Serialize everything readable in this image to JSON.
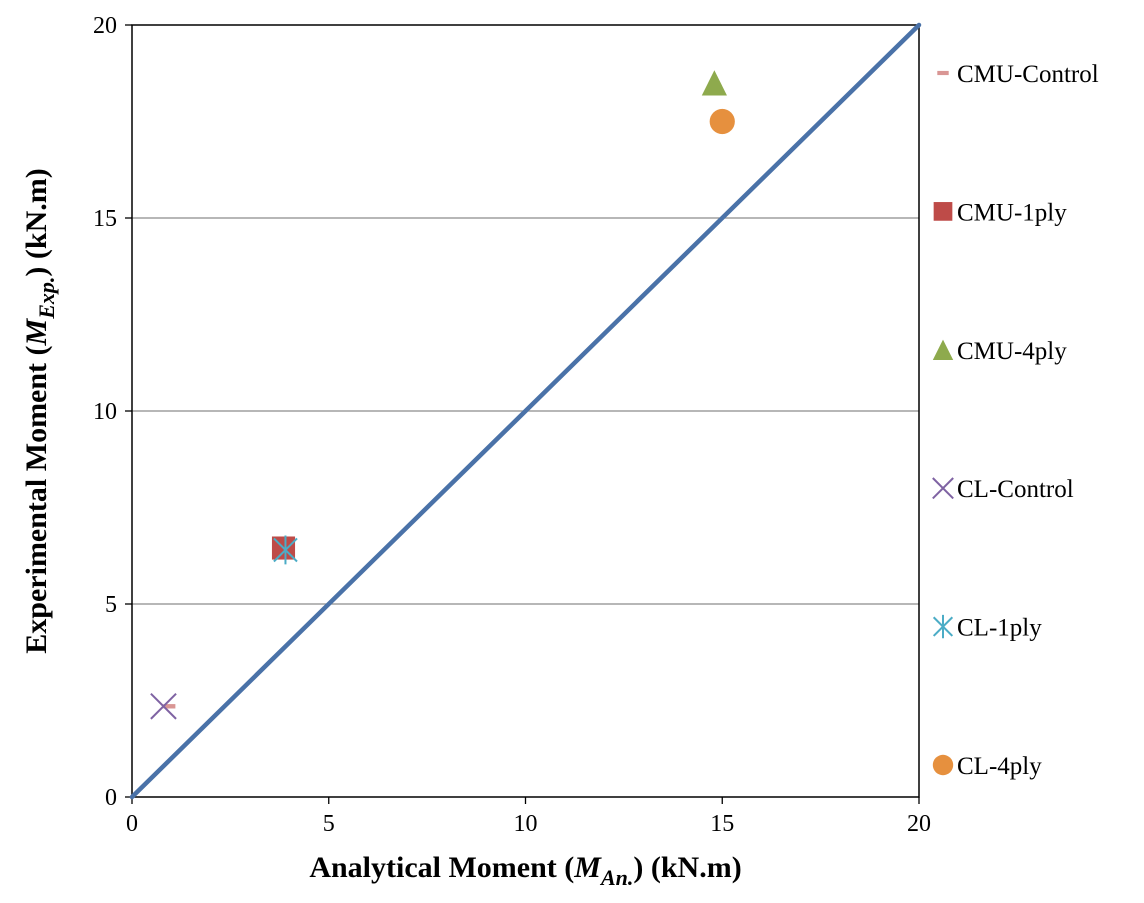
{
  "chart_data": {
    "type": "scatter",
    "xlabel": {
      "prefix": "Analytical Moment (",
      "var": "M",
      "sub": "An.",
      "suffix": ") (kN.m)"
    },
    "ylabel": {
      "prefix": "Experimental Moment (",
      "var": "M",
      "sub": "Exp.",
      "suffix": ") (kN.m)"
    },
    "xlim": [
      0,
      20
    ],
    "ylim": [
      0,
      20
    ],
    "xticks": [
      0,
      5,
      10,
      15,
      20
    ],
    "yticks": [
      0,
      5,
      10,
      15,
      20
    ],
    "grid": "horizontal",
    "legend_position": "right",
    "reference_line": {
      "from": [
        0,
        0
      ],
      "to": [
        20,
        20
      ],
      "color": "#4a72a8"
    },
    "series": [
      {
        "name": "CMU-Control",
        "marker": "dash",
        "color": "#d99694",
        "points": [
          [
            0.95,
            2.35
          ]
        ]
      },
      {
        "name": "CMU-1ply",
        "marker": "square",
        "color": "#be4b48",
        "points": [
          [
            3.85,
            6.45
          ]
        ]
      },
      {
        "name": "CMU-4ply",
        "marker": "triangle",
        "color": "#8eaa4d",
        "points": [
          [
            14.8,
            18.5
          ]
        ]
      },
      {
        "name": "CL-Control",
        "marker": "x",
        "color": "#7f63a3",
        "points": [
          [
            0.8,
            2.35
          ]
        ]
      },
      {
        "name": "CL-1ply",
        "marker": "star",
        "color": "#4bacc6",
        "points": [
          [
            3.9,
            6.4
          ]
        ]
      },
      {
        "name": "CL-4ply",
        "marker": "circle",
        "color": "#e6903e",
        "points": [
          [
            15.0,
            17.5
          ]
        ]
      }
    ]
  }
}
